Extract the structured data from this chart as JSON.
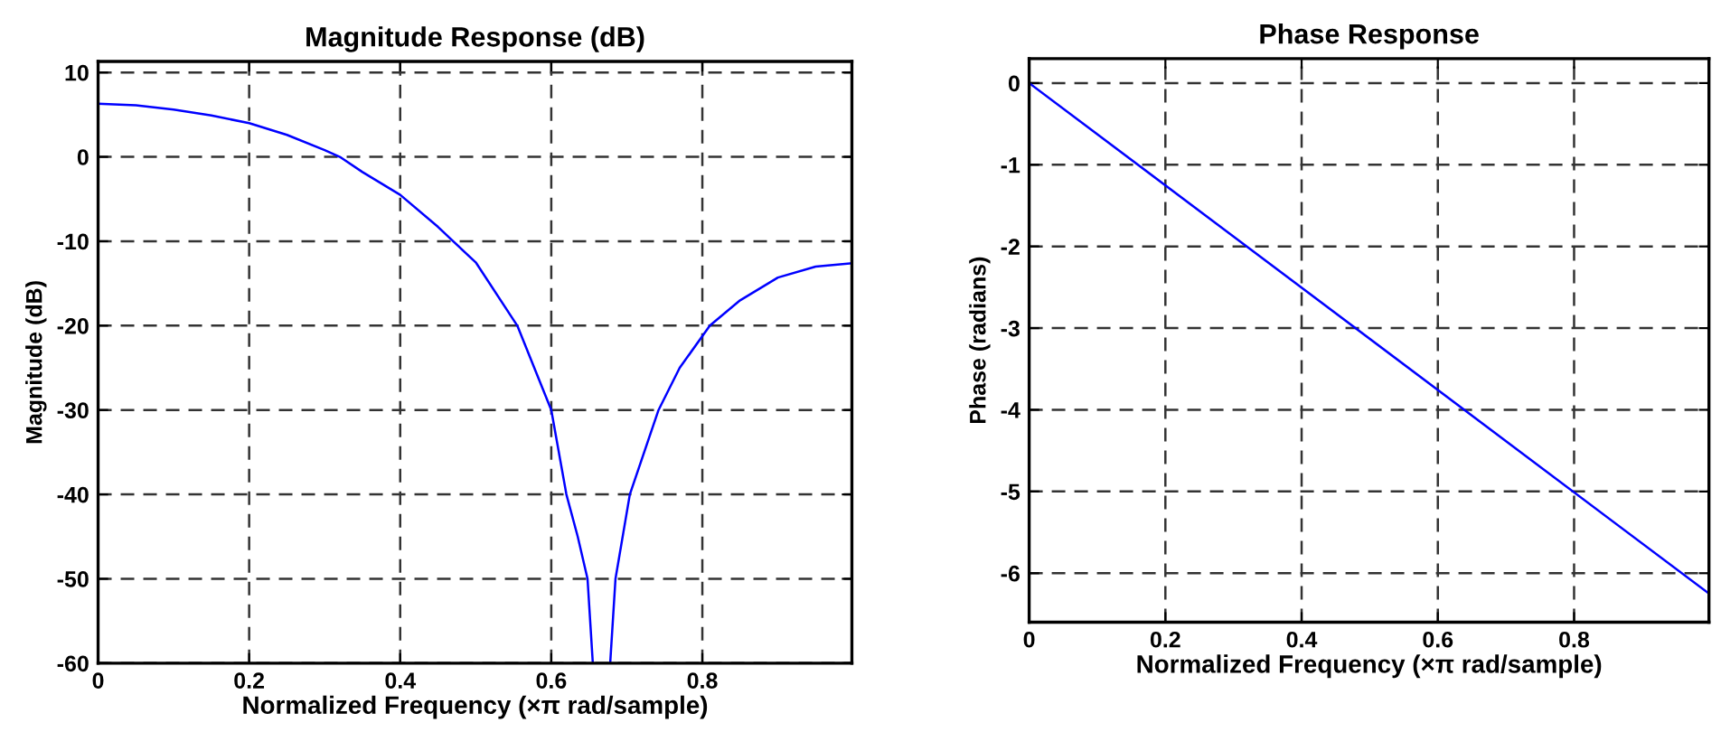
{
  "chart_data": [
    {
      "type": "line",
      "title": "Magnitude Response (dB)",
      "xlabel": "Normalized Frequency (×π rad/sample)",
      "ylabel": "Magnitude (dB)",
      "series": [
        {
          "color": "#0000ff",
          "x": [
            0,
            0.05,
            0.1,
            0.15,
            0.2,
            0.25,
            0.3,
            0.32,
            0.35,
            0.4,
            0.45,
            0.47,
            0.5,
            0.555,
            0.6,
            0.62,
            0.635,
            0.648,
            0.655
          ],
          "values": [
            6.3,
            6.1,
            5.6,
            4.9,
            4.0,
            2.6,
            0.8,
            0,
            -1.8,
            -4.5,
            -8.3,
            -10,
            -12.5,
            -20,
            -30,
            -40,
            -45,
            -50,
            -60
          ]
        },
        {
          "color": "#0000ff",
          "x": [
            0.678,
            0.685,
            0.704,
            0.742,
            0.77,
            0.81,
            0.85,
            0.9,
            0.95,
            0.998
          ],
          "values": [
            -60,
            -50,
            -40,
            -30,
            -25,
            -20,
            -17,
            -14.3,
            -13,
            -12.6
          ]
        }
      ],
      "xlim": [
        0,
        0.998
      ],
      "ylim": [
        -60,
        11.3
      ],
      "xticks": [
        0,
        0.2,
        0.4,
        0.6,
        0.8
      ],
      "yticks": [
        {
          "value": -60,
          "label": "-60"
        },
        {
          "value": -50,
          "label": "-50"
        },
        {
          "value": -40,
          "label": "-40"
        },
        {
          "value": -30,
          "label": "-30"
        },
        {
          "value": -20,
          "label": "-20"
        },
        {
          "value": -10,
          "label": "-10"
        },
        0,
        10
      ],
      "grid": true,
      "line_style": "solid"
    },
    {
      "type": "line",
      "title": "Phase Response",
      "xlabel": "Normalized Frequency (×π rad/sample)",
      "ylabel": "Phase (radians)",
      "series": [
        {
          "color": "#0000ff",
          "x": [
            0,
            0.998
          ],
          "values": [
            0,
            -6.25
          ]
        }
      ],
      "xlim": [
        0,
        0.998
      ],
      "ylim": [
        -6.6,
        0.3
      ],
      "xticks": [
        0,
        0.2,
        0.4,
        0.6,
        0.8
      ],
      "yticks": [
        {
          "value": -6,
          "label": "-6"
        },
        {
          "value": -5,
          "label": "-5"
        },
        {
          "value": -4,
          "label": "-4"
        },
        {
          "value": -3,
          "label": "-3"
        },
        {
          "value": -2,
          "label": "-2"
        },
        {
          "value": -1,
          "label": "-1"
        },
        0
      ],
      "grid": true,
      "line_style": "solid"
    }
  ]
}
